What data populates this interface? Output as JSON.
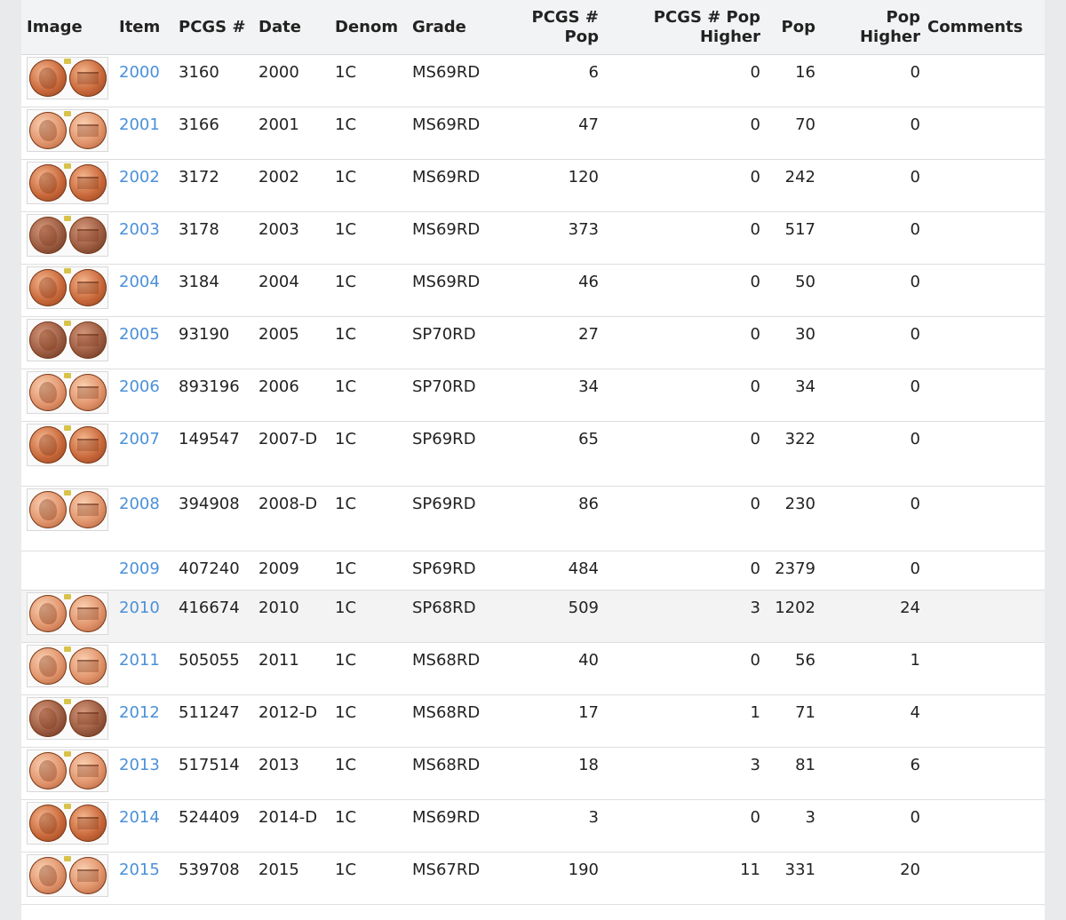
{
  "table": {
    "headers": {
      "image": "Image",
      "item": "Item",
      "pcgs": "PCGS #",
      "date": "Date",
      "denom": "Denom",
      "grade": "Grade",
      "pcgs_pop_l1": "PCGS #",
      "pcgs_pop_l2": "Pop",
      "pcgs_pop_higher_l1": "PCGS # Pop",
      "pcgs_pop_higher_l2": "Higher",
      "pop": "Pop",
      "pop_higher_l1": "Pop",
      "pop_higher_l2": "Higher",
      "comments": "Comments"
    },
    "rows": [
      {
        "item": "2000",
        "pcgs": "3160",
        "date": "2000",
        "denom": "1C",
        "grade": "MS69RD",
        "pcgs_pop": "6",
        "pcgs_pop_higher": "0",
        "pop": "16",
        "pop_higher": "0",
        "comments": ""
      },
      {
        "item": "2001",
        "pcgs": "3166",
        "date": "2001",
        "denom": "1C",
        "grade": "MS69RD",
        "pcgs_pop": "47",
        "pcgs_pop_higher": "0",
        "pop": "70",
        "pop_higher": "0",
        "comments": ""
      },
      {
        "item": "2002",
        "pcgs": "3172",
        "date": "2002",
        "denom": "1C",
        "grade": "MS69RD",
        "pcgs_pop": "120",
        "pcgs_pop_higher": "0",
        "pop": "242",
        "pop_higher": "0",
        "comments": ""
      },
      {
        "item": "2003",
        "pcgs": "3178",
        "date": "2003",
        "denom": "1C",
        "grade": "MS69RD",
        "pcgs_pop": "373",
        "pcgs_pop_higher": "0",
        "pop": "517",
        "pop_higher": "0",
        "comments": ""
      },
      {
        "item": "2004",
        "pcgs": "3184",
        "date": "2004",
        "denom": "1C",
        "grade": "MS69RD",
        "pcgs_pop": "46",
        "pcgs_pop_higher": "0",
        "pop": "50",
        "pop_higher": "0",
        "comments": ""
      },
      {
        "item": "2005",
        "pcgs": "93190",
        "date": "2005",
        "denom": "1C",
        "grade": "SP70RD",
        "pcgs_pop": "27",
        "pcgs_pop_higher": "0",
        "pop": "30",
        "pop_higher": "0",
        "comments": ""
      },
      {
        "item": "2006",
        "pcgs": "893196",
        "date": "2006",
        "denom": "1C",
        "grade": "SP70RD",
        "pcgs_pop": "34",
        "pcgs_pop_higher": "0",
        "pop": "34",
        "pop_higher": "0",
        "comments": ""
      },
      {
        "item": "2007",
        "pcgs": "149547",
        "date": "2007-D",
        "denom": "1C",
        "grade": "SP69RD",
        "pcgs_pop": "65",
        "pcgs_pop_higher": "0",
        "pop": "322",
        "pop_higher": "0",
        "comments": ""
      },
      {
        "item": "2008",
        "pcgs": "394908",
        "date": "2008-D",
        "denom": "1C",
        "grade": "SP69RD",
        "pcgs_pop": "86",
        "pcgs_pop_higher": "0",
        "pop": "230",
        "pop_higher": "0",
        "comments": ""
      },
      {
        "item": "2009",
        "pcgs": "407240",
        "date": "2009",
        "denom": "1C",
        "grade": "SP69RD",
        "pcgs_pop": "484",
        "pcgs_pop_higher": "0",
        "pop": "2379",
        "pop_higher": "0",
        "comments": ""
      },
      {
        "item": "2010",
        "pcgs": "416674",
        "date": "2010",
        "denom": "1C",
        "grade": "SP68RD",
        "pcgs_pop": "509",
        "pcgs_pop_higher": "3",
        "pop": "1202",
        "pop_higher": "24",
        "comments": ""
      },
      {
        "item": "2011",
        "pcgs": "505055",
        "date": "2011",
        "denom": "1C",
        "grade": "MS68RD",
        "pcgs_pop": "40",
        "pcgs_pop_higher": "0",
        "pop": "56",
        "pop_higher": "1",
        "comments": ""
      },
      {
        "item": "2012",
        "pcgs": "511247",
        "date": "2012-D",
        "denom": "1C",
        "grade": "MS68RD",
        "pcgs_pop": "17",
        "pcgs_pop_higher": "1",
        "pop": "71",
        "pop_higher": "4",
        "comments": ""
      },
      {
        "item": "2013",
        "pcgs": "517514",
        "date": "2013",
        "denom": "1C",
        "grade": "MS68RD",
        "pcgs_pop": "18",
        "pcgs_pop_higher": "3",
        "pop": "81",
        "pop_higher": "6",
        "comments": ""
      },
      {
        "item": "2014",
        "pcgs": "524409",
        "date": "2014-D",
        "denom": "1C",
        "grade": "MS69RD",
        "pcgs_pop": "3",
        "pcgs_pop_higher": "0",
        "pop": "3",
        "pop_higher": "0",
        "comments": ""
      },
      {
        "item": "2015",
        "pcgs": "539708",
        "date": "2015",
        "denom": "1C",
        "grade": "MS67RD",
        "pcgs_pop": "190",
        "pcgs_pop_higher": "11",
        "pop": "331",
        "pop_higher": "20",
        "comments": ""
      }
    ]
  },
  "images": {
    "row_icons": [
      "penny-coin-pair-icon",
      "penny-coin-pair-icon",
      "penny-coin-pair-icon",
      "penny-coin-pair-icon",
      "penny-coin-pair-icon",
      "penny-coin-pair-icon",
      "penny-coin-pair-icon",
      "penny-coin-pair-icon",
      "penny-coin-pair-icon",
      "",
      "penny-coin-pair-icon",
      "penny-coin-pair-icon",
      "penny-coin-pair-icon",
      "penny-coin-pair-icon",
      "penny-coin-pair-icon",
      "penny-coin-pair-icon"
    ]
  },
  "colors": {
    "link": "#4a90d9",
    "header_bg": "#f2f3f4",
    "shaded_row_bg": "#f3f3f3",
    "page_bg": "#e9eaec"
  }
}
